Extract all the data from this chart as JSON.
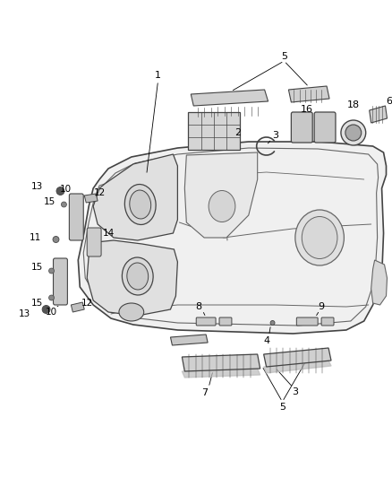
{
  "bg_color": "#ffffff",
  "line_color": "#666666",
  "dark_line": "#444444",
  "fig_width": 4.38,
  "fig_height": 5.33,
  "dpi": 100
}
